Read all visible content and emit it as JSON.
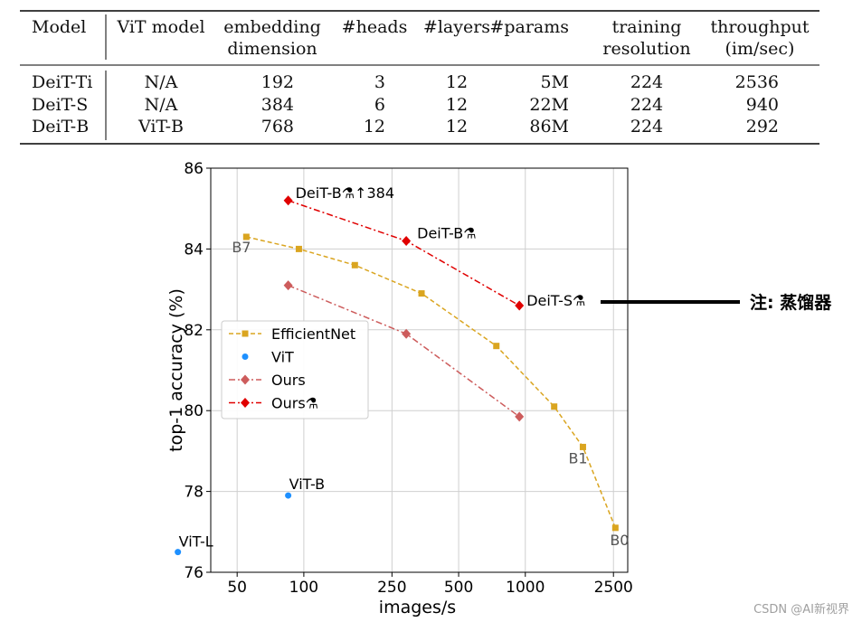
{
  "table": {
    "columns": [
      {
        "key": "model",
        "lines": [
          "Model"
        ]
      },
      {
        "key": "vit",
        "lines": [
          "ViT model"
        ]
      },
      {
        "key": "embed",
        "lines": [
          "embedding",
          "dimension"
        ]
      },
      {
        "key": "heads",
        "lines": [
          "#heads"
        ]
      },
      {
        "key": "layers",
        "lines": [
          "#layers"
        ]
      },
      {
        "key": "params",
        "lines": [
          "#params"
        ]
      },
      {
        "key": "res",
        "lines": [
          "training",
          "resolution"
        ]
      },
      {
        "key": "thr",
        "lines": [
          "throughput",
          "(im/sec)"
        ]
      }
    ],
    "rows": [
      {
        "model": "DeiT-Ti",
        "vit": "N/A",
        "embed": "192",
        "heads": "3",
        "layers": "12",
        "params": "5M",
        "res": "224",
        "thr": "2536"
      },
      {
        "model": "DeiT-S",
        "vit": "N/A",
        "embed": "384",
        "heads": "6",
        "layers": "12",
        "params": "22M",
        "res": "224",
        "thr": "940"
      },
      {
        "model": "DeiT-B",
        "vit": "ViT-B",
        "embed": "768",
        "heads": "12",
        "layers": "12",
        "params": "86M",
        "res": "224",
        "thr": "292"
      }
    ]
  },
  "chart_data": {
    "type": "line",
    "xscale": "log",
    "xlabel": "images/s",
    "ylabel": "top-1 accuracy (%)",
    "xlim": [
      38,
      2900
    ],
    "ylim": [
      76,
      86
    ],
    "xticks": [
      50,
      100,
      250,
      500,
      1000,
      2500
    ],
    "yticks": [
      76,
      78,
      80,
      82,
      84,
      86
    ],
    "grid": true,
    "legend_position": "center-left",
    "series": [
      {
        "name": "EfficientNet",
        "color": "#DAA520",
        "marker": "square",
        "line": "dashed",
        "points": [
          [
            55,
            84.3
          ],
          [
            95,
            84.0
          ],
          [
            170,
            83.6
          ],
          [
            340,
            82.9
          ],
          [
            740,
            81.6
          ],
          [
            1350,
            80.1
          ],
          [
            1820,
            79.1
          ],
          [
            2550,
            77.1
          ]
        ]
      },
      {
        "name": "ViT",
        "color": "#1E90FF",
        "marker": "circle",
        "line": "none",
        "points": [
          [
            85,
            77.9
          ],
          [
            27,
            76.5
          ]
        ]
      },
      {
        "name": "Ours",
        "color": "#CD5C5C",
        "marker": "diamond",
        "line": "dashdot",
        "points": [
          [
            85,
            83.1
          ],
          [
            290,
            81.9
          ],
          [
            940,
            79.85
          ]
        ]
      },
      {
        "name": "Ours⚗",
        "color": "#E00000",
        "marker": "diamond",
        "line": "dashdot",
        "points": [
          [
            85,
            85.2
          ],
          [
            290,
            84.2
          ],
          [
            940,
            82.6
          ]
        ]
      }
    ],
    "annotations": [
      {
        "text": "DeiT-B⚗↑384",
        "x": 85,
        "y": 85.2,
        "dx": 8,
        "dy": -3,
        "color": "#000000"
      },
      {
        "text": "DeiT-B⚗",
        "x": 290,
        "y": 84.2,
        "dx": 12,
        "dy": -3,
        "color": "#000000"
      },
      {
        "text": "DeiT-S⚗",
        "x": 940,
        "y": 82.6,
        "dx": 8,
        "dy": 0,
        "color": "#000000"
      },
      {
        "text": "B7",
        "x": 55,
        "y": 84.3,
        "dx": -16,
        "dy": 17,
        "color": "#555555"
      },
      {
        "text": "B1",
        "x": 1820,
        "y": 79.1,
        "dx": -16,
        "dy": 18,
        "color": "#555555"
      },
      {
        "text": "B0",
        "x": 2550,
        "y": 77.1,
        "dx": -6,
        "dy": 19,
        "color": "#555555"
      },
      {
        "text": "ViT-B",
        "x": 85,
        "y": 77.9,
        "dx": 1,
        "dy": -7,
        "color": "#000000"
      },
      {
        "text": "ViT-L",
        "x": 27,
        "y": 76.5,
        "dx": 1,
        "dy": -6,
        "color": "#000000"
      }
    ],
    "side_note": "注: 蒸馏器"
  },
  "watermark": "CSDN @AI新视界"
}
